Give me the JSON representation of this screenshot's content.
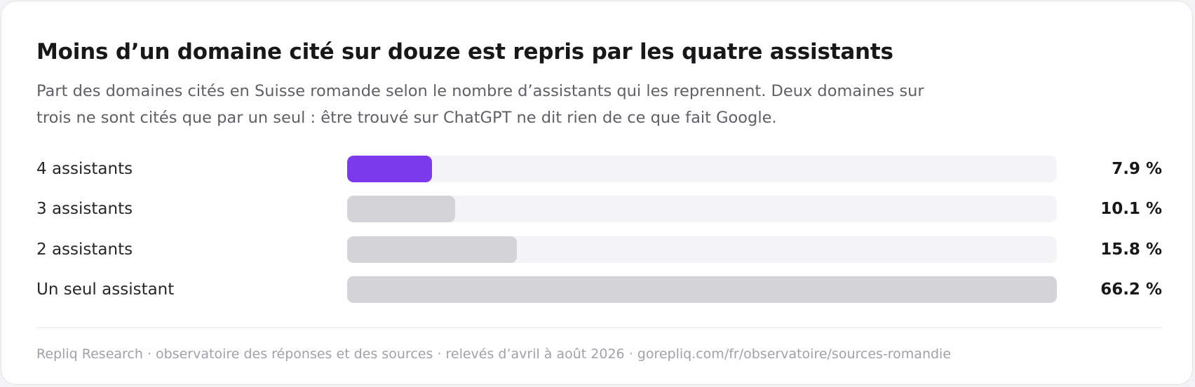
{
  "title": "Moins d’un domaine cité sur douze est repris par les quatre assistants",
  "subtitle": "Part des domaines cités en Suisse romande selon le nombre d’assistants qui les reprennent. Deux domaines sur trois ne sont cités que par un seul : être trouvé sur ChatGPT ne dit rien de ce que fait Google.",
  "footer": "Repliq Research · observatoire des réponses et des sources · relevés d’avril à août 2026 · gorepliq.com/fr/observatoire/sources-romandie",
  "colors": {
    "highlight": "#7c3aed",
    "neutral": "#d4d4d8",
    "track": "#f4f4f6"
  },
  "chart_data": {
    "type": "bar",
    "orientation": "horizontal",
    "title": "Moins d’un domaine cité sur douze est repris par les quatre assistants",
    "categories": [
      "4 assistants",
      "3 assistants",
      "2 assistants",
      "Un seul assistant"
    ],
    "values": [
      7.9,
      10.1,
      15.8,
      66.2
    ],
    "value_labels": [
      "7.9 %",
      "10.1 %",
      "15.8 %",
      "66.2 %"
    ],
    "highlighted": [
      true,
      false,
      false,
      false
    ],
    "xlim": [
      0,
      66.2
    ],
    "grid": false,
    "legend": "none"
  }
}
